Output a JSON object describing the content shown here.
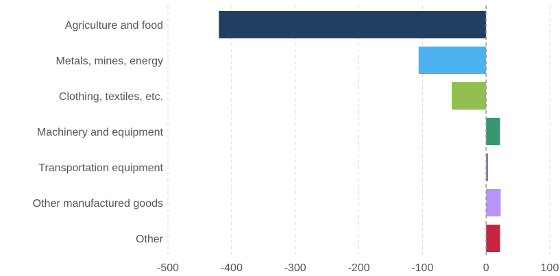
{
  "chart_data": {
    "type": "bar",
    "orientation": "horizontal",
    "categories": [
      "Agriculture and food",
      "Metals, mines, energy",
      "Clothing, textiles, etc.",
      "Machinery and equipment",
      "Transportation equipment",
      "Other manufactured goods",
      "Other"
    ],
    "values": [
      -420,
      -106,
      -54,
      22,
      3,
      23,
      22
    ],
    "colors": [
      "#213f60",
      "#4cb1ef",
      "#93be50",
      "#3a9670",
      "#8e67c6",
      "#b895f5",
      "#c8243f"
    ],
    "xlim": [
      -500,
      100
    ],
    "xticks": [
      -500,
      -400,
      -300,
      -200,
      -100,
      0,
      100
    ],
    "grid": true,
    "title": "",
    "xlabel": "",
    "ylabel": ""
  }
}
